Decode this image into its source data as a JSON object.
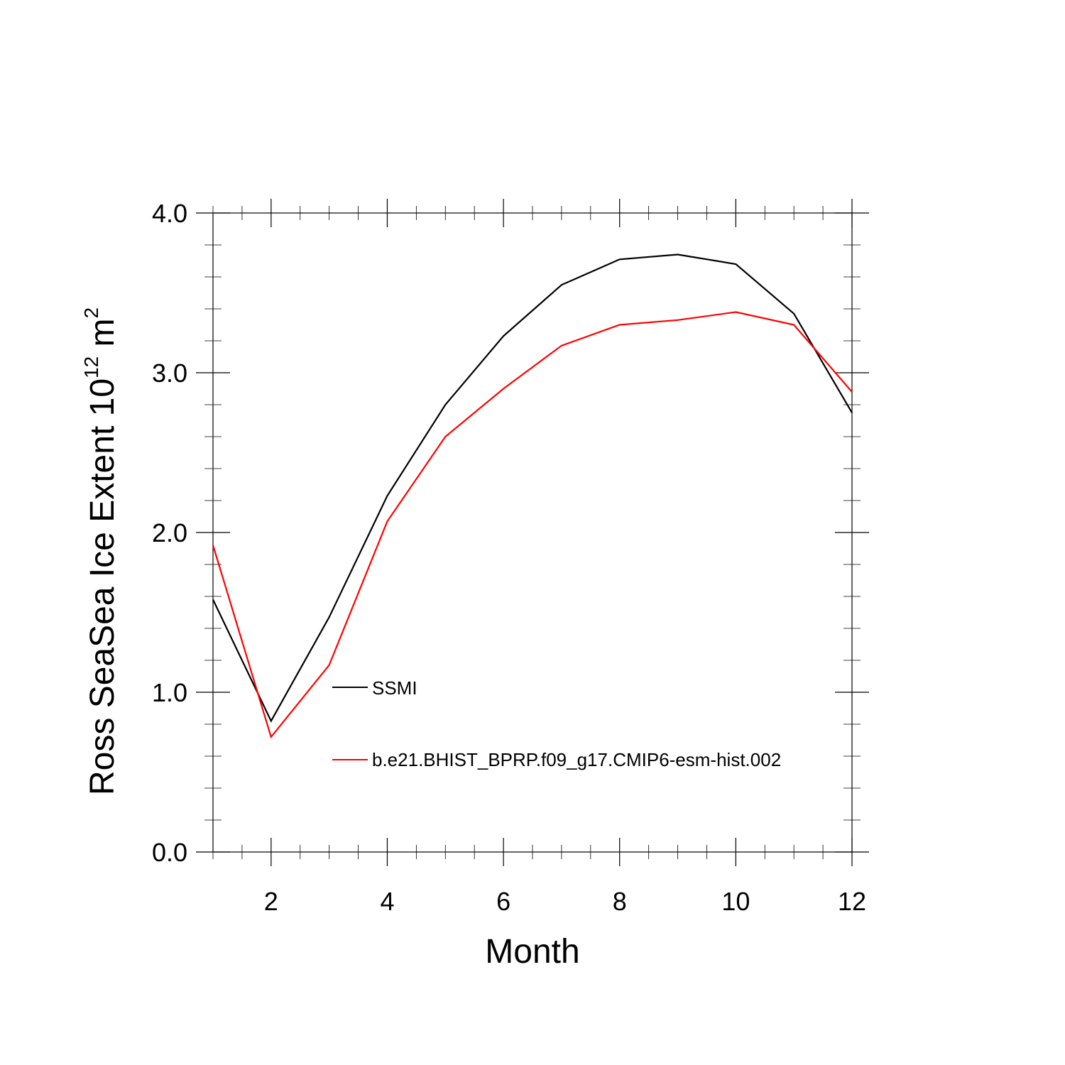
{
  "chart_data": {
    "type": "line",
    "title": "",
    "xlabel": "Month",
    "ylabel_main": "Ross SeaSea Ice Extent 10",
    "ylabel_superscript_1": "12",
    "ylabel_unit": " m",
    "ylabel_superscript_2": "2",
    "xlim": [
      1,
      12
    ],
    "ylim": [
      0,
      4
    ],
    "x_ticks": [
      2,
      4,
      6,
      8,
      10,
      12
    ],
    "x_tick_labels": [
      "2",
      "4",
      "6",
      "8",
      "10",
      "12"
    ],
    "y_ticks": [
      0,
      1,
      2,
      3,
      4
    ],
    "y_tick_labels": [
      "0.0",
      "1.0",
      "2.0",
      "3.0",
      "4.0"
    ],
    "x": [
      1,
      2,
      3,
      4,
      5,
      6,
      7,
      8,
      9,
      10,
      11,
      12
    ],
    "series": [
      {
        "name": "SSMI",
        "color": "#000000",
        "values": [
          1.58,
          0.82,
          1.47,
          2.23,
          2.8,
          3.23,
          3.55,
          3.71,
          3.74,
          3.68,
          3.37,
          2.75
        ]
      },
      {
        "name": "b.e21.BHIST_BPRP.f09_g17.CMIP6-esm-hist.002",
        "color": "#ff0000",
        "values": [
          1.92,
          0.72,
          1.17,
          2.07,
          2.6,
          2.9,
          3.17,
          3.3,
          3.33,
          3.38,
          3.3,
          2.88
        ]
      }
    ],
    "legend_position": "inside-lower-middle",
    "grid": false
  }
}
